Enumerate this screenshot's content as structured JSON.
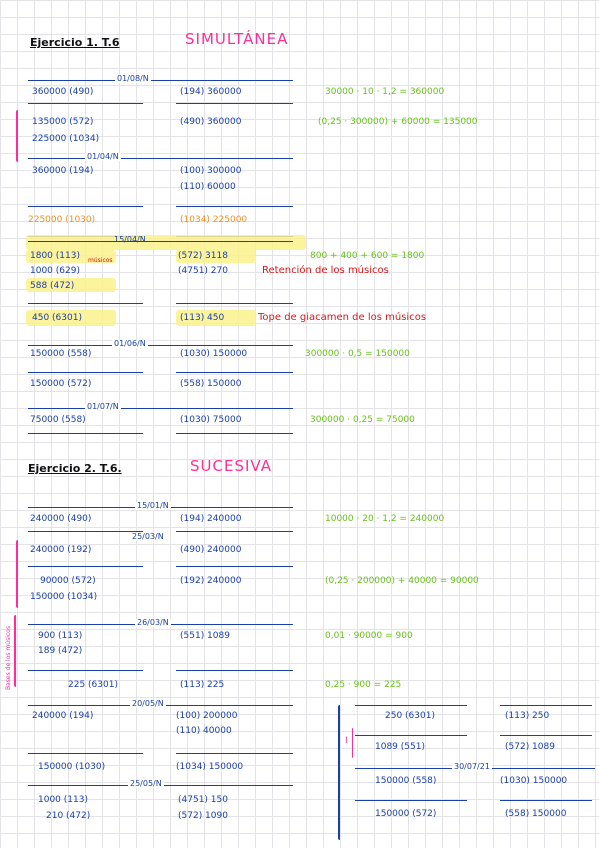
{
  "ex1": {
    "title": "Ejercicio 1. T.6",
    "method": "SIMULTÁNEA",
    "entries": [
      {
        "date": "01/08/N",
        "left": [
          "360000 (490)"
        ],
        "right": [
          "(194) 360000"
        ],
        "calc": "30000 · 10 · 1,2 = 360000"
      },
      {
        "date": "01/04/N",
        "left": [
          "135000 (572)",
          "225000 (1034)"
        ],
        "right": [
          "(490) 360000"
        ],
        "calc": "(0,25 · 300000) + 60000 = 135000"
      },
      {
        "date": "",
        "left": [
          "360000 (194)"
        ],
        "right": [
          "(100) 300000",
          "(110) 60000"
        ],
        "calc": ""
      },
      {
        "date": "",
        "left": [
          "225000 (1030)"
        ],
        "right": [
          "(1034) 225000"
        ],
        "calc": ""
      },
      {
        "date": "15/04/N",
        "left": [
          "1800 (113)",
          "1000 (629)",
          "588 (472)"
        ],
        "right": [
          "(572) 3118",
          "(4751) 270"
        ],
        "calc": "800 + 400 + 600 = 1800",
        "note": "Retención de los músicos",
        "small": "músicos"
      },
      {
        "date": "",
        "left": [
          "450 (6301)"
        ],
        "right": [
          "(113) 450"
        ],
        "calc": "",
        "note": "Tope de giacamen de los músicos"
      },
      {
        "date": "01/06/N",
        "left": [
          "150000 (558)"
        ],
        "right": [
          "(1030) 150000"
        ],
        "calc": "300000 · 0,5 = 150000"
      },
      {
        "date": "",
        "left": [
          "150000 (572)"
        ],
        "right": [
          "(558) 150000"
        ],
        "calc": ""
      },
      {
        "date": "01/07/N",
        "left": [
          "75000 (558)"
        ],
        "right": [
          "(1030) 75000"
        ],
        "calc": "300000 · 0,25 = 75000"
      }
    ]
  },
  "ex2": {
    "title": "Ejercicio 2. T.6.",
    "method": "SUCESIVA",
    "side_note": "Bases de los músicos",
    "entries": [
      {
        "date": "15/01/N",
        "left": [
          "240000 (490)"
        ],
        "right": [
          "(194) 240000"
        ],
        "calc": "10000 · 20 · 1,2 = 240000"
      },
      {
        "date": "25/03/N",
        "left": [
          "240000 (192)"
        ],
        "right": [
          "(490) 240000"
        ],
        "calc": ""
      },
      {
        "date": "",
        "left": [
          "90000 (572)",
          "150000 (1034)"
        ],
        "right": [
          "(192) 240000"
        ],
        "calc": "(0,25 · 200000) + 40000 = 90000"
      },
      {
        "date": "26/03/N",
        "left": [
          "900 (113)",
          "189 (472)"
        ],
        "right": [
          "(551) 1089"
        ],
        "calc": "0,01 · 90000 = 900"
      },
      {
        "date": "",
        "left": [
          "225 (6301)"
        ],
        "right": [
          "(113) 225"
        ],
        "calc": "0,25 · 900 = 225"
      },
      {
        "date": "20/05/N",
        "left": [
          "240000 (194)"
        ],
        "right": [
          "(100) 200000",
          "(110) 40000"
        ],
        "calc": ""
      },
      {
        "date": "",
        "left": [
          "150000 (1030)"
        ],
        "right": [
          "(1034) 150000"
        ],
        "calc": ""
      },
      {
        "date": "25/05/N",
        "left": [
          "1000 (113)",
          "210 (472)"
        ],
        "right": [
          "(4751) 150",
          "(572) 1090"
        ],
        "calc": ""
      }
    ],
    "right_block": {
      "roman": "I",
      "date": "30/07/21",
      "entries": [
        {
          "left": "250 (6301)",
          "right": "(113) 250"
        },
        {
          "left": "1089 (551)",
          "right": "(572) 1089"
        },
        {
          "left": "150000 (558)",
          "right": "(1030) 150000"
        },
        {
          "left": "150000 (572)",
          "right": "(558) 150000"
        }
      ]
    }
  }
}
